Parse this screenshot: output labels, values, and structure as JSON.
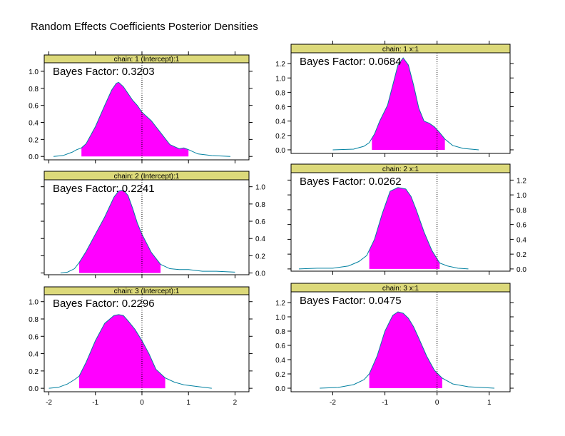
{
  "figure": {
    "title": "Random Effects Coefficients Posterior Densities"
  },
  "colors": {
    "strip": "#dcd97a",
    "fill": "#ff00ff",
    "curve": "#0080a0",
    "frame": "#000000"
  },
  "chart_data": [
    {
      "type": "area",
      "strip_label": "chain:  1   (Intercept):1",
      "annotation": "Bayes Factor: 0.3203",
      "x_ticks": [
        -2,
        -1,
        0,
        1,
        2
      ],
      "y_ticks": [
        0.0,
        0.2,
        0.4,
        0.6,
        0.8,
        1.0
      ],
      "xlim": [
        -2.1,
        2.3
      ],
      "ylim": [
        -0.04,
        1.1
      ],
      "y_axis_side": "left",
      "show_x_tick_labels": false,
      "shade_range": [
        -1.3,
        1.0
      ],
      "reference_line_x": 0,
      "x": [
        -1.9,
        -1.7,
        -1.5,
        -1.4,
        -1.3,
        -1.2,
        -1.0,
        -0.8,
        -0.65,
        -0.55,
        -0.5,
        -0.4,
        -0.3,
        -0.2,
        -0.1,
        0.0,
        0.2,
        0.4,
        0.6,
        0.8,
        0.9,
        1.0,
        1.2,
        1.5,
        1.9
      ],
      "y": [
        0.0,
        0.01,
        0.05,
        0.08,
        0.1,
        0.15,
        0.35,
        0.6,
        0.78,
        0.86,
        0.87,
        0.82,
        0.74,
        0.66,
        0.6,
        0.52,
        0.42,
        0.28,
        0.14,
        0.09,
        0.1,
        0.08,
        0.03,
        0.01,
        0.0
      ]
    },
    {
      "type": "area",
      "strip_label": "chain:  1   x:1",
      "annotation": "Bayes Factor: 0.0684",
      "x_ticks": [
        -2,
        -1,
        0,
        1
      ],
      "y_ticks": [
        0.0,
        0.2,
        0.4,
        0.6,
        0.8,
        1.0,
        1.2
      ],
      "xlim": [
        -2.8,
        1.4
      ],
      "ylim": [
        -0.05,
        1.35
      ],
      "y_axis_side": "left",
      "show_x_tick_labels": false,
      "shade_range": [
        -1.25,
        0.15
      ],
      "reference_line_x": 0,
      "x": [
        -2.0,
        -1.6,
        -1.4,
        -1.3,
        -1.2,
        -1.1,
        -0.95,
        -0.85,
        -0.75,
        -0.65,
        -0.55,
        -0.45,
        -0.35,
        -0.25,
        -0.15,
        -0.05,
        0.05,
        0.15,
        0.3,
        0.5,
        0.8
      ],
      "y": [
        0.0,
        0.01,
        0.05,
        0.1,
        0.22,
        0.4,
        0.62,
        0.9,
        1.18,
        1.28,
        1.18,
        0.9,
        0.58,
        0.4,
        0.37,
        0.32,
        0.24,
        0.15,
        0.06,
        0.02,
        0.0
      ]
    },
    {
      "type": "area",
      "strip_label": "chain:  2   (Intercept):1",
      "annotation": "Bayes Factor: 0.2241",
      "x_ticks": [
        -2,
        -1,
        0,
        1,
        2
      ],
      "y_ticks": [
        0.0,
        0.2,
        0.4,
        0.6,
        0.8,
        1.0
      ],
      "xlim": [
        -2.1,
        2.3
      ],
      "ylim": [
        -0.02,
        1.08
      ],
      "y_axis_side": "right",
      "show_x_tick_labels": false,
      "shade_range": [
        -1.35,
        0.4
      ],
      "reference_line_x": 0,
      "x": [
        -1.75,
        -1.6,
        -1.45,
        -1.35,
        -1.2,
        -1.0,
        -0.8,
        -0.6,
        -0.5,
        -0.4,
        -0.3,
        -0.2,
        -0.1,
        0.0,
        0.2,
        0.4,
        0.6,
        0.8,
        1.0,
        1.3,
        1.6,
        2.0
      ],
      "y": [
        0.0,
        0.01,
        0.05,
        0.12,
        0.25,
        0.45,
        0.65,
        0.88,
        0.95,
        0.96,
        0.9,
        0.75,
        0.58,
        0.45,
        0.24,
        0.1,
        0.05,
        0.04,
        0.04,
        0.02,
        0.02,
        0.01
      ]
    },
    {
      "type": "area",
      "strip_label": "chain:  2   x:1",
      "annotation": "Bayes Factor: 0.0262",
      "x_ticks": [
        -2,
        -1,
        0,
        1
      ],
      "y_ticks": [
        0.0,
        0.2,
        0.4,
        0.6,
        0.8,
        1.0,
        1.2
      ],
      "xlim": [
        -2.8,
        1.4
      ],
      "ylim": [
        -0.03,
        1.3
      ],
      "y_axis_side": "right",
      "show_x_tick_labels": false,
      "shade_range": [
        -1.3,
        0.05
      ],
      "reference_line_x": 0,
      "x": [
        -2.65,
        -2.3,
        -2.0,
        -1.7,
        -1.5,
        -1.35,
        -1.2,
        -1.05,
        -0.9,
        -0.75,
        -0.6,
        -0.5,
        -0.4,
        -0.25,
        -0.1,
        0.05,
        0.2,
        0.4,
        0.6
      ],
      "y": [
        0.0,
        0.01,
        0.01,
        0.04,
        0.1,
        0.18,
        0.4,
        0.75,
        1.05,
        1.1,
        1.08,
        0.98,
        0.8,
        0.5,
        0.25,
        0.08,
        0.04,
        0.01,
        0.0
      ]
    },
    {
      "type": "area",
      "strip_label": "chain:  3   (Intercept):1",
      "annotation": "Bayes Factor: 0.2296",
      "x_ticks": [
        -2,
        -1,
        0,
        1,
        2
      ],
      "y_ticks": [
        0.0,
        0.2,
        0.4,
        0.6,
        0.8,
        1.0
      ],
      "xlim": [
        -2.1,
        2.3
      ],
      "ylim": [
        -0.04,
        1.08
      ],
      "y_axis_side": "left",
      "show_x_tick_labels": true,
      "shade_range": [
        -1.35,
        0.5
      ],
      "reference_line_x": 0,
      "x": [
        -2.0,
        -1.8,
        -1.6,
        -1.45,
        -1.35,
        -1.2,
        -1.0,
        -0.8,
        -0.6,
        -0.5,
        -0.4,
        -0.3,
        -0.15,
        0.0,
        0.15,
        0.3,
        0.5,
        0.7,
        0.9,
        1.2,
        1.5
      ],
      "y": [
        0.0,
        0.01,
        0.05,
        0.1,
        0.14,
        0.3,
        0.55,
        0.75,
        0.84,
        0.85,
        0.84,
        0.78,
        0.68,
        0.55,
        0.4,
        0.22,
        0.12,
        0.07,
        0.04,
        0.02,
        0.0
      ]
    },
    {
      "type": "area",
      "strip_label": "chain:  3   x:1",
      "annotation": "Bayes Factor: 0.0475",
      "x_ticks": [
        -2,
        -1,
        0,
        1
      ],
      "y_ticks": [
        0.0,
        0.2,
        0.4,
        0.6,
        0.8,
        1.0,
        1.2
      ],
      "xlim": [
        -2.8,
        1.4
      ],
      "ylim": [
        -0.05,
        1.35
      ],
      "y_axis_side": "left",
      "show_x_tick_labels": true,
      "shade_range": [
        -1.3,
        0.1
      ],
      "reference_line_x": 0,
      "x": [
        -2.25,
        -1.9,
        -1.6,
        -1.4,
        -1.3,
        -1.15,
        -1.0,
        -0.85,
        -0.75,
        -0.65,
        -0.55,
        -0.45,
        -0.35,
        -0.2,
        -0.05,
        0.1,
        0.3,
        0.6,
        1.1
      ],
      "y": [
        0.0,
        0.01,
        0.05,
        0.12,
        0.2,
        0.45,
        0.8,
        1.02,
        1.07,
        1.05,
        0.98,
        0.86,
        0.7,
        0.45,
        0.25,
        0.14,
        0.06,
        0.02,
        0.0
      ]
    }
  ]
}
